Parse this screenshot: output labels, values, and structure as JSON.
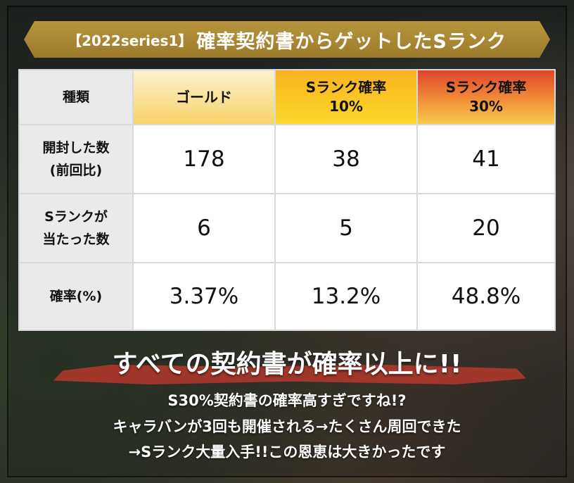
{
  "title": {
    "prefix": "【2022series1】",
    "main": "確率契約書からゲットしたSランク"
  },
  "table": {
    "headers": {
      "kind": "種類",
      "gold": "ゴールド",
      "s10_line1": "Sランク確率",
      "s10_line2": "10%",
      "s30_line1": "Sランク確率",
      "s30_line2": "30%"
    },
    "rows": {
      "opened": {
        "label_line1": "開封した数",
        "label_line2": "(前回比)",
        "gold": "178",
        "s10": "38",
        "s30": "41"
      },
      "hits": {
        "label_line1": "Sランクが",
        "label_line2": "当たった数",
        "gold": "6",
        "s10": "5",
        "s30": "20"
      },
      "rate": {
        "label": "確率(%)",
        "gold": "3.37%",
        "s10": "13.2%",
        "s30": "48.8%"
      }
    }
  },
  "headline": "すべての契約書が確率以上に!!",
  "notes": {
    "line1": "S30%契約書の確率高すぎですね!?",
    "line2": "キャラバンが3回も開催される→たくさん周回できた",
    "line3": "→Sランク大量入手!!この恩恵は大きかったです"
  },
  "colors": {
    "title_banner": "#a8862f",
    "header_gold": "#f7d36b",
    "header_s10": "#fbc425",
    "header_s30": "#e0442a",
    "brush": "#a8382a"
  }
}
